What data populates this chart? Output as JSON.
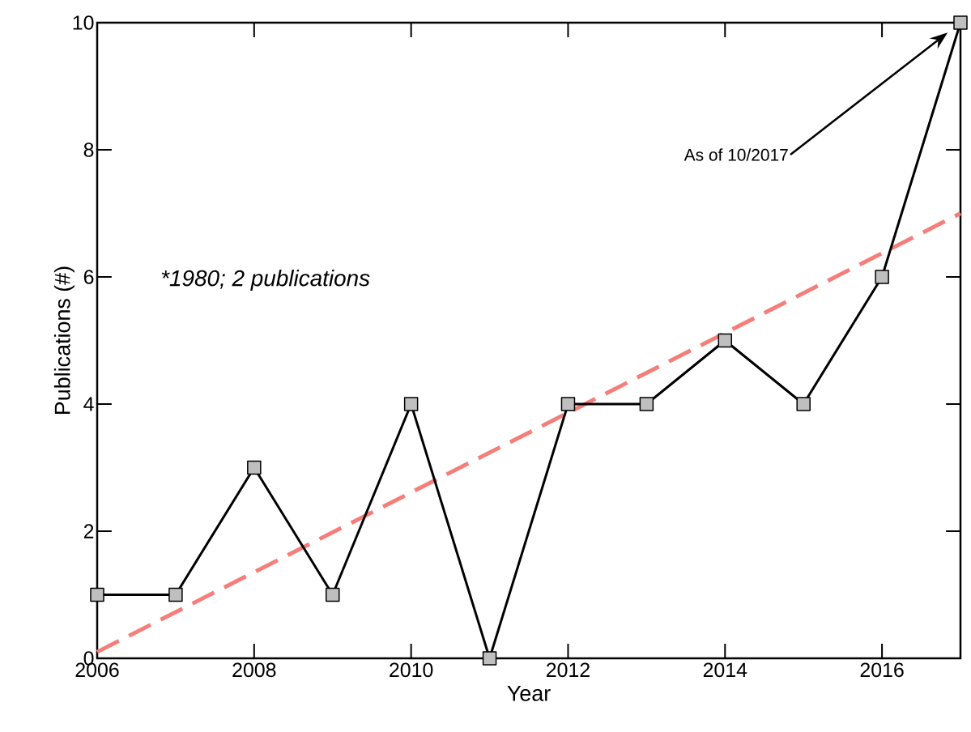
{
  "chart_data": {
    "type": "line",
    "xlabel": "Year",
    "ylabel": "Publications (#)",
    "x": [
      2006,
      2007,
      2008,
      2009,
      2010,
      2011,
      2012,
      2013,
      2014,
      2015,
      2016,
      2017
    ],
    "series": [
      {
        "color": "#000000",
        "values": [
          1,
          1,
          3,
          1,
          4,
          0,
          4,
          4,
          5,
          4,
          6,
          10
        ],
        "marker": "square",
        "line_style": "solid"
      },
      {
        "type": "line",
        "x": [
          2006,
          2017
        ],
        "values": [
          0.1,
          7.0
        ],
        "color": "#f47f7a",
        "marker": "none",
        "line_style": "dashed"
      }
    ],
    "xlim": [
      2006,
      2017
    ],
    "ylim": [
      0,
      10
    ],
    "xticks": [
      2006,
      2008,
      2010,
      2012,
      2014,
      2016
    ],
    "yticks": [
      0,
      2,
      4,
      6,
      8,
      10
    ],
    "grid": false,
    "annotations": [
      "As of 10/2017",
      "*1980; 2 publications"
    ]
  }
}
